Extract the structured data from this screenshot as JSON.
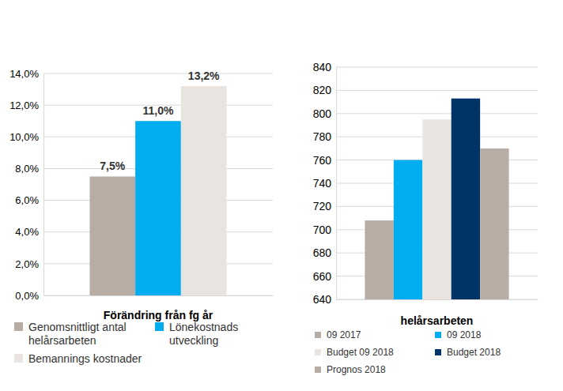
{
  "chart_data": [
    {
      "type": "bar",
      "categories": [
        "Förändring från fg år"
      ],
      "series": [
        {
          "name": "Genomsnittligt antal helårsarbeten",
          "color": "#b8ada4",
          "values": [
            7.5
          ],
          "value_labels": [
            "7,5%"
          ]
        },
        {
          "name": "Lönekostnads utveckling",
          "color": "#00aeef",
          "values": [
            11.0
          ],
          "value_labels": [
            "11,0%"
          ]
        },
        {
          "name": "Bemannings kostnader",
          "color": "#e9e4df",
          "values": [
            13.2
          ],
          "value_labels": [
            "13,2%"
          ]
        }
      ],
      "ylim": [
        0,
        14
      ],
      "yticks": [
        {
          "value": 0,
          "label": "0,0%"
        },
        {
          "value": 2,
          "label": "2,0%"
        },
        {
          "value": 4,
          "label": "4,0%"
        },
        {
          "value": 6,
          "label": "6,0%"
        },
        {
          "value": 8,
          "label": "8,0%"
        },
        {
          "value": 10,
          "label": "10,0%"
        },
        {
          "value": 12,
          "label": "12,0%"
        },
        {
          "value": 14,
          "label": "14,0%"
        }
      ],
      "grid": true,
      "legend": "bottom",
      "data_labels": true
    },
    {
      "type": "bar",
      "categories": [
        "helårsarbeten"
      ],
      "series": [
        {
          "name": "09 2017",
          "color": "#b8ada4",
          "values": [
            708
          ]
        },
        {
          "name": "09 2018",
          "color": "#00aeef",
          "values": [
            760
          ]
        },
        {
          "name": "Budget 09 2018",
          "color": "#e9e4df",
          "values": [
            795
          ]
        },
        {
          "name": "Budget 2018",
          "color": "#003366",
          "values": [
            813
          ]
        },
        {
          "name": "Prognos 2018",
          "color": "#b8ada4",
          "values": [
            770
          ]
        }
      ],
      "ylim": [
        640,
        840
      ],
      "yticks": [
        640,
        660,
        680,
        700,
        720,
        740,
        760,
        780,
        800,
        820,
        840
      ],
      "grid": true,
      "legend": "bottom",
      "data_labels": false
    }
  ]
}
